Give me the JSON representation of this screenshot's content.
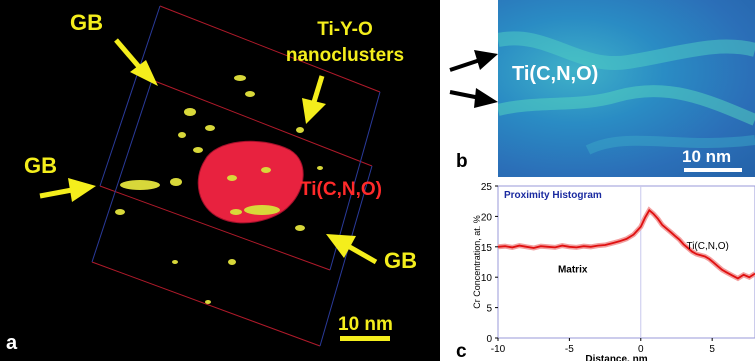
{
  "panel_a": {
    "letter": "a",
    "gb_label": "GB",
    "nanoclusters_line1": "Ti-Y-O",
    "nanoclusters_line2": "nanoclusters",
    "ti_label": "Ti(C,N,O)",
    "scalebar": "10 nm",
    "colors": {
      "label": "#f4ee1c",
      "particle": "#e8223f",
      "clusters": "#d8d83a"
    }
  },
  "panel_b": {
    "letter": "b",
    "ti_label": "Ti(C,N,O)",
    "scalebar": "10 nm"
  },
  "panel_c": {
    "letter": "c"
  },
  "chart_data": {
    "type": "line",
    "title": "Proximity Histogram",
    "xlabel": "Distance, nm",
    "ylabel": "Cr Concentration, at. %",
    "xlim": [
      -10,
      8
    ],
    "ylim": [
      0,
      25
    ],
    "xticks": [
      -10,
      -5,
      0,
      5
    ],
    "yticks": [
      0,
      5,
      10,
      15,
      20,
      25
    ],
    "annotations": [
      "Matrix",
      "Ti(C,N,O)"
    ],
    "series": [
      {
        "color": "#e01010",
        "x": [
          -10,
          -9.5,
          -9,
          -8.5,
          -8,
          -7.5,
          -7,
          -6.5,
          -6,
          -5.5,
          -5,
          -4.5,
          -4,
          -3.5,
          -3,
          -2.5,
          -2,
          -1.5,
          -1,
          -0.5,
          0,
          0.3,
          0.6,
          0.9,
          1.2,
          1.5,
          1.8,
          2.1,
          2.4,
          2.7,
          3,
          3.3,
          3.6,
          3.9,
          4.2,
          4.5,
          4.8,
          5.1,
          5.4,
          5.7,
          6,
          6.4,
          6.8,
          7.2,
          7.6,
          8
        ],
        "y": [
          15.0,
          15.1,
          14.9,
          15.2,
          15.0,
          14.8,
          15.1,
          15.0,
          14.9,
          15.2,
          15.0,
          14.9,
          15.1,
          15.0,
          15.2,
          15.3,
          15.6,
          15.9,
          16.3,
          17.0,
          18.3,
          19.8,
          21.0,
          20.4,
          19.6,
          18.6,
          18.0,
          17.4,
          16.8,
          16.2,
          15.4,
          14.8,
          14.2,
          13.8,
          13.6,
          13.4,
          13.0,
          12.4,
          11.8,
          11.2,
          10.8,
          10.3,
          9.8,
          10.4,
          10.0,
          10.6
        ]
      }
    ]
  }
}
